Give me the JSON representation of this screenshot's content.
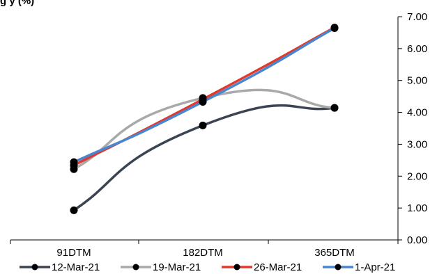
{
  "chart_data": {
    "type": "line",
    "title": "g    y          (%)",
    "categories": [
      "91DTM",
      "182DTM",
      "365DTM"
    ],
    "ylim": [
      0,
      7
    ],
    "yticks": [
      "0.00",
      "1.00",
      "2.00",
      "3.00",
      "4.00",
      "5.00",
      "6.00",
      "7.00"
    ],
    "y_axis_side": "right",
    "grid": false,
    "legend_position": "bottom",
    "series": [
      {
        "name": "12-Mar-21",
        "color": "#3b4452",
        "values": [
          0.93,
          3.59,
          4.14
        ]
      },
      {
        "name": "19-Mar-21",
        "color": "#a9a9a9",
        "values": [
          2.22,
          4.45,
          4.14
        ]
      },
      {
        "name": "26-Mar-21",
        "color": "#e03a2e",
        "values": [
          2.34,
          4.41,
          6.66
        ]
      },
      {
        "name": "1-Apr-21",
        "color": "#4a86cf",
        "values": [
          2.44,
          4.33,
          6.64
        ]
      }
    ]
  }
}
